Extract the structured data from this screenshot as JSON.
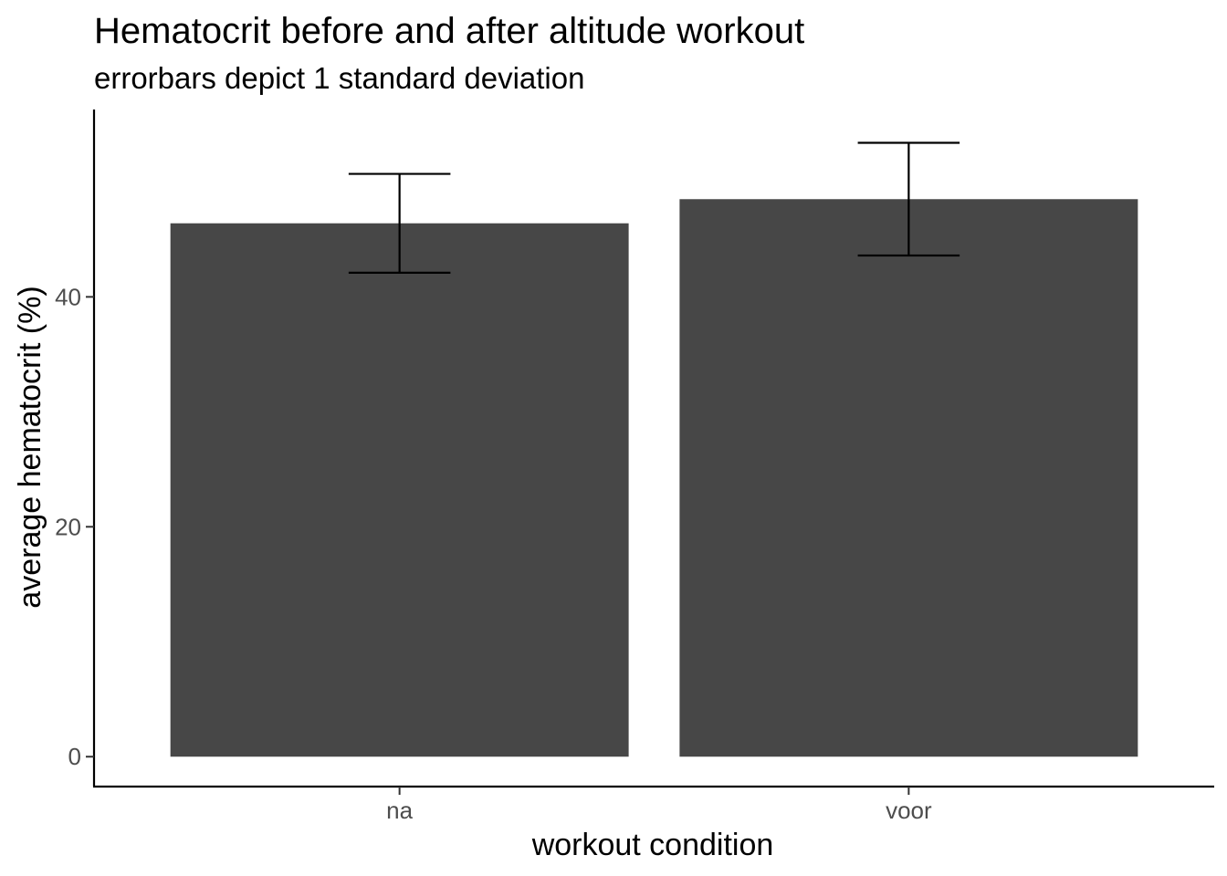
{
  "chart_data": {
    "type": "bar",
    "title": "Hematocrit before and after altitude workout",
    "subtitle": "errorbars depict 1 standard deviation",
    "xlabel": "workout condition",
    "ylabel": "average hematocrit (%)",
    "categories": [
      "na",
      "voor"
    ],
    "values": [
      46.4,
      48.5
    ],
    "error_sd": [
      4.3,
      4.9
    ],
    "ylim": [
      -2.6,
      56.3
    ],
    "yticks": [
      0,
      20,
      40
    ],
    "bar_color": "#474747",
    "grid": false,
    "legend": "none"
  }
}
